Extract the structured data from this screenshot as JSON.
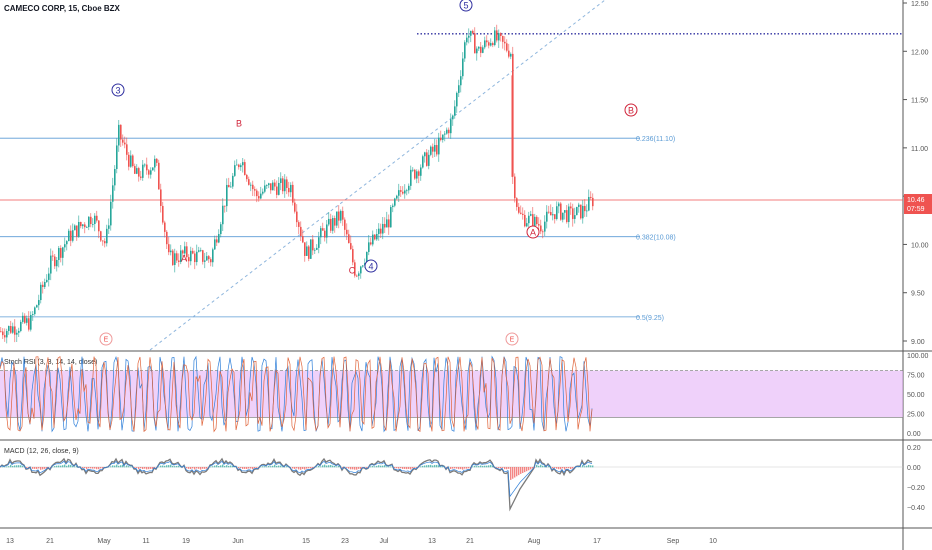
{
  "header": {
    "symbol_line": "CAMECO CORP, 15, Cboe BZX"
  },
  "price_axis": {
    "ticks": [
      "12.50",
      "12.00",
      "11.50",
      "11.00",
      "10.50",
      "10.00",
      "9.50",
      "9.00"
    ],
    "tick_values": [
      12.5,
      12.0,
      11.5,
      11.0,
      10.5,
      10.0,
      9.5,
      9.0
    ],
    "current_price": "10.46",
    "countdown": "07:59",
    "ylim": [
      8.6,
      12.55
    ]
  },
  "rsi_axis": {
    "ticks": [
      "100.00",
      "75.00",
      "50.00",
      "25.00",
      "0.00"
    ],
    "tick_values": [
      100,
      75,
      50,
      25,
      0
    ]
  },
  "macd_axis": {
    "ticks": [
      "0.20",
      "0.00",
      "−0.20",
      "−0.40"
    ],
    "tick_values": [
      0.2,
      0.0,
      -0.2,
      -0.4
    ]
  },
  "time_axis": {
    "labels": [
      "13",
      "21",
      "May",
      "11",
      "19",
      "Jun",
      "15",
      "23",
      "Jul",
      "13",
      "21",
      "Aug",
      "17",
      "Sep",
      "10"
    ]
  },
  "indicators": {
    "rsi_label": "Stoch RSI (3, 3, 14, 14, close)",
    "macd_label": "MACD (12, 26, close, 9)"
  },
  "wave_labels": [
    {
      "text": "3",
      "circled": true,
      "color": "#3030a0"
    },
    {
      "text": "B",
      "circled": false,
      "color": "#d0243a"
    },
    {
      "text": "A",
      "circled": false,
      "color": "#d0243a"
    },
    {
      "text": "C",
      "circled": false,
      "color": "#d0243a"
    },
    {
      "text": "4",
      "circled": true,
      "color": "#3030a0"
    },
    {
      "text": "5",
      "circled": true,
      "color": "#3030a0"
    },
    {
      "text": "B",
      "circled": true,
      "color": "#d0243a"
    },
    {
      "text": "A",
      "circled": true,
      "color": "#d0243a"
    }
  ],
  "fib_levels": [
    {
      "label": "0.236(11.10)",
      "value": 11.1
    },
    {
      "label": "0.382(10.08)",
      "value": 10.08
    },
    {
      "label": "0.5(9.25)",
      "value": 9.25
    }
  ],
  "event_markers": [
    "E",
    "E"
  ],
  "colors": {
    "bull": "#26a69a",
    "bear": "#ef5350",
    "fib": "#5b9bd5",
    "rsi_fill": "#e5b3f7",
    "wave_blue": "#3030a0",
    "wave_red": "#d0243a",
    "price_tag": "#ef5350",
    "macd_line": "#7a7a7a"
  },
  "chart_data": {
    "type": "candlestick",
    "price_key_points": [
      {
        "t": "Apr 8",
        "price": 9.1
      },
      {
        "t": "Apr 21",
        "price": 9.8
      },
      {
        "t": "May 4",
        "price": 11.25
      },
      {
        "t": "May 16",
        "price": 9.85
      },
      {
        "t": "Jun 1",
        "price": 10.95
      },
      {
        "t": "Jun 10",
        "price": 9.85
      },
      {
        "t": "Jun 22",
        "price": 10.15
      },
      {
        "t": "Jun 29",
        "price": 9.7
      },
      {
        "t": "Jul 13",
        "price": 11.2
      },
      {
        "t": "Jul 21",
        "price": 12.3
      },
      {
        "t": "Jul 28",
        "price": 12.05
      },
      {
        "t": "Jul 29",
        "price": 10.75
      },
      {
        "t": "Aug 3",
        "price": 10.1
      },
      {
        "t": "Aug 14",
        "price": 10.46
      }
    ],
    "resistance_dotted": 12.15,
    "horizontal_line": 10.46,
    "macd_min": -0.42
  }
}
